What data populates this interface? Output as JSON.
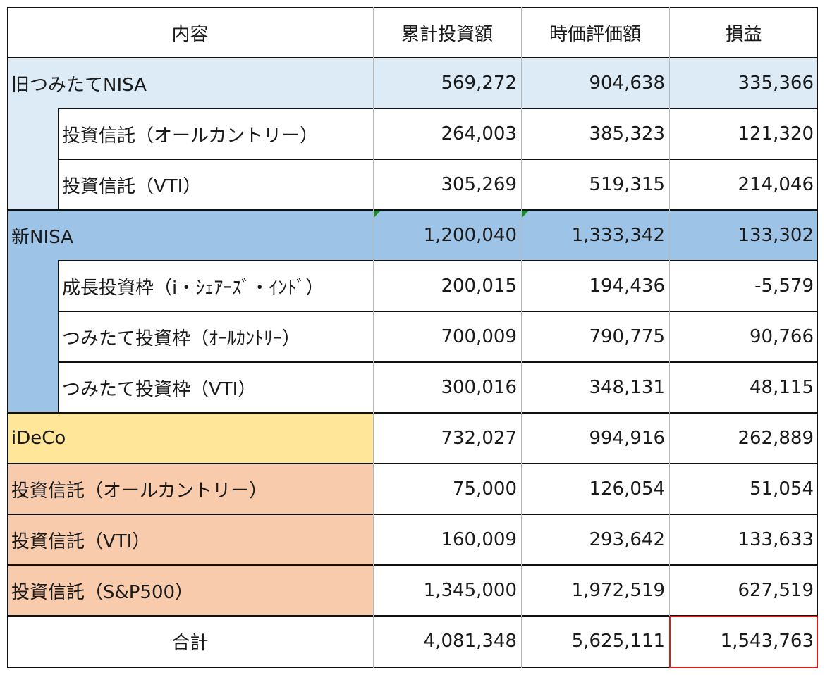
{
  "header": {
    "content": "内容",
    "cumulative": "累計投資額",
    "market_value": "時価評価額",
    "profit_loss": "損益"
  },
  "rows": [
    {
      "label": "旧つみたてNISA",
      "cumulative": "569,272",
      "market_value": "904,638",
      "profit_loss": "335,366"
    },
    {
      "label": "投資信託（オールカントリー）",
      "cumulative": "264,003",
      "market_value": "385,323",
      "profit_loss": "121,320"
    },
    {
      "label": "投資信託（VTI）",
      "cumulative": "305,269",
      "market_value": "519,315",
      "profit_loss": "214,046"
    },
    {
      "label": "新NISA",
      "cumulative": "1,200,040",
      "market_value": "1,333,342",
      "profit_loss": "133,302"
    },
    {
      "label": "成長投資枠（i・ｼｪｱｰｽﾞ・ｲﾝﾄﾞ）",
      "cumulative": "200,015",
      "market_value": "194,436",
      "profit_loss": "-5,579"
    },
    {
      "label": "つみたて投資枠（ｵｰﾙｶﾝﾄﾘｰ）",
      "cumulative": "700,009",
      "market_value": "790,775",
      "profit_loss": "90,766"
    },
    {
      "label": "つみたて投資枠（VTI）",
      "cumulative": "300,016",
      "market_value": "348,131",
      "profit_loss": "48,115"
    },
    {
      "label": "iDeCo",
      "cumulative": "732,027",
      "market_value": "994,916",
      "profit_loss": "262,889"
    },
    {
      "label": "投資信託（オールカントリー）",
      "cumulative": "75,000",
      "market_value": "126,054",
      "profit_loss": "51,054"
    },
    {
      "label": "投資信託（VTI）",
      "cumulative": "160,009",
      "market_value": "293,642",
      "profit_loss": "133,633"
    },
    {
      "label": "投資信託（S&P500）",
      "cumulative": "1,345,000",
      "market_value": "1,972,519",
      "profit_loss": "627,519"
    }
  ],
  "total": {
    "label": "合計",
    "cumulative": "4,081,348",
    "market_value": "5,625,111",
    "profit_loss": "1,543,763"
  },
  "colors": {
    "old_nisa": "#ddebf7",
    "new_nisa": "#9dc3e6",
    "ideco": "#ffe699",
    "taxable": "#f8cbad",
    "highlight_border": "#d91e1e",
    "comment_marker": "#1e8c2e"
  }
}
